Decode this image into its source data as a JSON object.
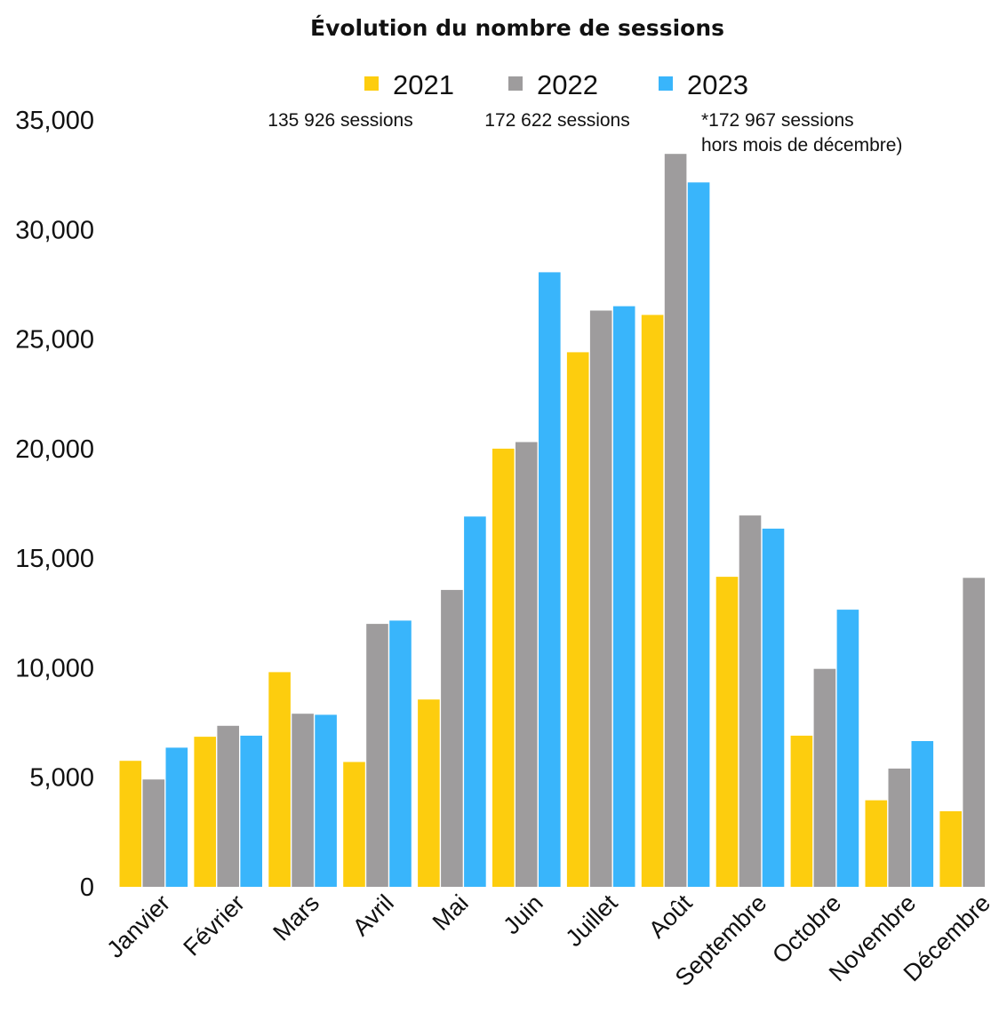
{
  "chart_data": {
    "type": "bar",
    "title": "Évolution du nombre de sessions",
    "xlabel": "",
    "ylabel": "",
    "ylim": [
      0,
      35000
    ],
    "yticks": [
      "0",
      "5,000",
      "10,000",
      "15,000",
      "20,000",
      "25,000",
      "30,000",
      "35,000"
    ],
    "grid": false,
    "legend_position": "top",
    "categories": [
      "Janvier",
      "Février",
      "Mars",
      "Avril",
      "Mai",
      "Juin",
      "Juillet",
      "Août",
      "Septembre",
      "Octobre",
      "Novembre",
      "Décembre"
    ],
    "series": [
      {
        "name": "2021",
        "color": "#FDCD0E",
        "values": [
          5750,
          6850,
          9800,
          5700,
          8550,
          20000,
          24400,
          26100,
          14150,
          6900,
          3950,
          3450
        ]
      },
      {
        "name": "2022",
        "color": "#9E9C9D",
        "values": [
          4900,
          7350,
          7900,
          12000,
          13550,
          20300,
          26300,
          33450,
          16950,
          9950,
          5400,
          14100
        ]
      },
      {
        "name": "2023",
        "color": "#39B5FB",
        "values": [
          6350,
          6900,
          7850,
          12150,
          16900,
          28050,
          26500,
          32150,
          16350,
          12650,
          6650,
          null
        ]
      }
    ],
    "annotations": {
      "s2021": "135 926 sessions",
      "s2022": "172 622 sessions",
      "s2023_line1": "*172 967 sessions",
      "s2023_line2": "hors mois de décembre)"
    }
  }
}
